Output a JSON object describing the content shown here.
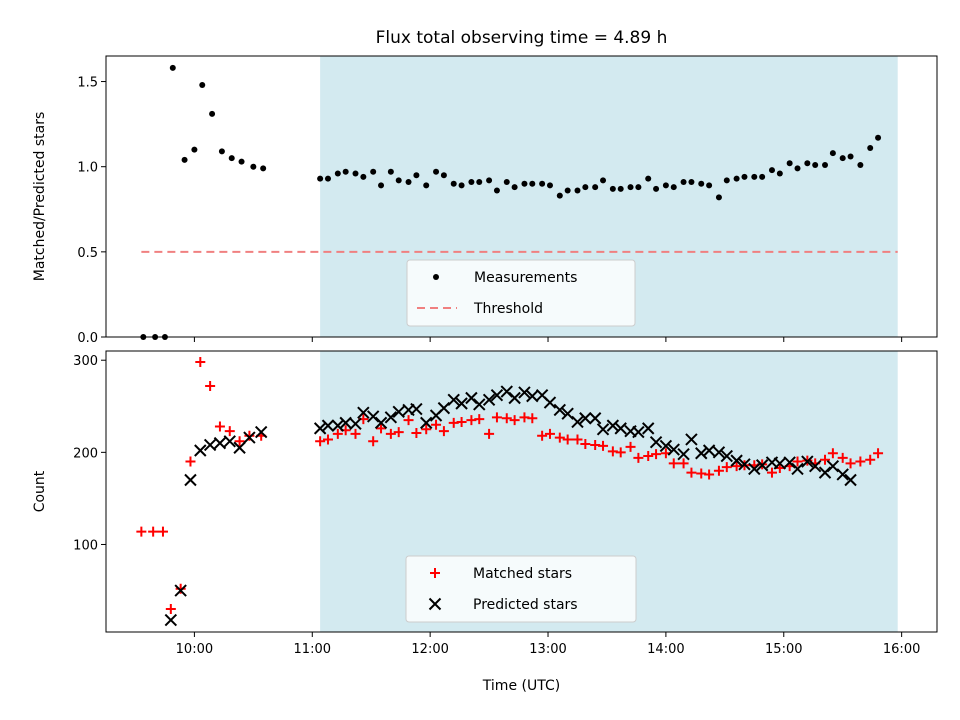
{
  "chart_data": [
    {
      "type": "scatter",
      "title": "Flux total observing time = 4.89 h",
      "xlabel": "",
      "ylabel": "Matched/Predicted stars",
      "ylim": [
        0,
        1.65
      ],
      "yticks": [
        0.0,
        0.5,
        1.0,
        1.5
      ],
      "ytick_labels": [
        "0.0",
        "0.5",
        "1.0",
        "1.5"
      ],
      "xlim": [
        "09:15",
        "16:18"
      ],
      "xtick_labels": [],
      "grid": false,
      "legend_position": "lower center",
      "shaded_interval": {
        "from": "11:04",
        "to": "15:58",
        "color": "#d3eaf0"
      },
      "threshold": {
        "name": "Threshold",
        "value": 0.5,
        "from": "09:33",
        "to": "15:58",
        "color": "#f08080",
        "style": "dashed"
      },
      "series": [
        {
          "name": "Measurements",
          "marker": "dot",
          "color": "#000000",
          "points": [
            [
              "09:34",
              0.0
            ],
            [
              "09:40",
              0.0
            ],
            [
              "09:45",
              0.0
            ],
            [
              "09:49",
              1.58
            ],
            [
              "09:55",
              1.04
            ],
            [
              "10:00",
              1.1
            ],
            [
              "10:04",
              1.48
            ],
            [
              "10:09",
              1.31
            ],
            [
              "10:14",
              1.09
            ],
            [
              "10:19",
              1.05
            ],
            [
              "10:24",
              1.03
            ],
            [
              "10:30",
              1.0
            ],
            [
              "10:35",
              0.99
            ],
            [
              "11:04",
              0.93
            ],
            [
              "11:08",
              0.93
            ],
            [
              "11:13",
              0.96
            ],
            [
              "11:17",
              0.97
            ],
            [
              "11:22",
              0.96
            ],
            [
              "11:26",
              0.94
            ],
            [
              "11:31",
              0.97
            ],
            [
              "11:35",
              0.89
            ],
            [
              "11:40",
              0.97
            ],
            [
              "11:44",
              0.92
            ],
            [
              "11:49",
              0.91
            ],
            [
              "11:53",
              0.95
            ],
            [
              "11:58",
              0.89
            ],
            [
              "12:03",
              0.97
            ],
            [
              "12:07",
              0.95
            ],
            [
              "12:12",
              0.9
            ],
            [
              "12:16",
              0.89
            ],
            [
              "12:21",
              0.91
            ],
            [
              "12:25",
              0.91
            ],
            [
              "12:30",
              0.92
            ],
            [
              "12:34",
              0.86
            ],
            [
              "12:39",
              0.91
            ],
            [
              "12:43",
              0.88
            ],
            [
              "12:48",
              0.9
            ],
            [
              "12:52",
              0.9
            ],
            [
              "12:57",
              0.9
            ],
            [
              "13:01",
              0.89
            ],
            [
              "13:06",
              0.83
            ],
            [
              "13:10",
              0.86
            ],
            [
              "13:15",
              0.86
            ],
            [
              "13:19",
              0.88
            ],
            [
              "13:24",
              0.88
            ],
            [
              "13:28",
              0.92
            ],
            [
              "13:33",
              0.87
            ],
            [
              "13:37",
              0.87
            ],
            [
              "13:42",
              0.88
            ],
            [
              "13:46",
              0.88
            ],
            [
              "13:51",
              0.93
            ],
            [
              "13:55",
              0.87
            ],
            [
              "14:00",
              0.89
            ],
            [
              "14:04",
              0.88
            ],
            [
              "14:09",
              0.91
            ],
            [
              "14:13",
              0.91
            ],
            [
              "14:18",
              0.9
            ],
            [
              "14:22",
              0.89
            ],
            [
              "14:27",
              0.82
            ],
            [
              "14:31",
              0.92
            ],
            [
              "14:36",
              0.93
            ],
            [
              "14:40",
              0.94
            ],
            [
              "14:45",
              0.94
            ],
            [
              "14:49",
              0.94
            ],
            [
              "14:54",
              0.98
            ],
            [
              "14:58",
              0.96
            ],
            [
              "15:03",
              1.02
            ],
            [
              "15:07",
              0.99
            ],
            [
              "15:12",
              1.02
            ],
            [
              "15:16",
              1.01
            ],
            [
              "15:21",
              1.01
            ],
            [
              "15:25",
              1.08
            ],
            [
              "15:30",
              1.05
            ],
            [
              "15:34",
              1.06
            ],
            [
              "15:39",
              1.01
            ],
            [
              "15:44",
              1.11
            ],
            [
              "15:48",
              1.17
            ]
          ]
        }
      ]
    },
    {
      "type": "scatter",
      "title": "",
      "xlabel": "Time (UTC)",
      "ylabel": "Count",
      "ylim": [
        5,
        310
      ],
      "yticks": [
        100,
        200,
        300
      ],
      "ytick_labels": [
        "100",
        "200",
        "300"
      ],
      "xlim": [
        "09:15",
        "16:18"
      ],
      "xticks": [
        "10:00",
        "11:00",
        "12:00",
        "13:00",
        "14:00",
        "15:00",
        "16:00"
      ],
      "xtick_labels": [
        "10:00",
        "11:00",
        "12:00",
        "13:00",
        "14:00",
        "15:00",
        "16:00"
      ],
      "grid": false,
      "legend_position": "lower center",
      "shaded_interval": {
        "from": "11:04",
        "to": "15:58",
        "color": "#d3eaf0"
      },
      "series": [
        {
          "name": "Matched stars",
          "marker": "plus",
          "color": "#ff0000",
          "points": [
            [
              "09:33",
              114
            ],
            [
              "09:39",
              114
            ],
            [
              "09:44",
              114
            ],
            [
              "09:48",
              30
            ],
            [
              "09:53",
              52
            ],
            [
              "09:58",
              190
            ],
            [
              "10:03",
              298
            ],
            [
              "10:08",
              272
            ],
            [
              "10:13",
              228
            ],
            [
              "10:18",
              223
            ],
            [
              "10:23",
              212
            ],
            [
              "10:28",
              218
            ],
            [
              "10:34",
              218
            ],
            [
              "11:04",
              212
            ],
            [
              "11:08",
              214
            ],
            [
              "11:13",
              220
            ],
            [
              "11:17",
              224
            ],
            [
              "11:22",
              220
            ],
            [
              "11:26",
              236
            ],
            [
              "11:31",
              212
            ],
            [
              "11:35",
              226
            ],
            [
              "11:40",
              220
            ],
            [
              "11:44",
              222
            ],
            [
              "11:49",
              235
            ],
            [
              "11:53",
              221
            ],
            [
              "11:58",
              225
            ],
            [
              "12:03",
              230
            ],
            [
              "12:07",
              223
            ],
            [
              "12:12",
              232
            ],
            [
              "12:16",
              233
            ],
            [
              "12:21",
              235
            ],
            [
              "12:25",
              236
            ],
            [
              "12:30",
              220
            ],
            [
              "12:34",
              238
            ],
            [
              "12:39",
              237
            ],
            [
              "12:43",
              235
            ],
            [
              "12:48",
              238
            ],
            [
              "12:52",
              237
            ],
            [
              "12:57",
              218
            ],
            [
              "13:01",
              220
            ],
            [
              "13:06",
              216
            ],
            [
              "13:10",
              214
            ],
            [
              "13:15",
              214
            ],
            [
              "13:19",
              209
            ],
            [
              "13:24",
              208
            ],
            [
              "13:28",
              207
            ],
            [
              "13:33",
              201
            ],
            [
              "13:37",
              200
            ],
            [
              "13:42",
              206
            ],
            [
              "13:46",
              194
            ],
            [
              "13:51",
              196
            ],
            [
              "13:55",
              198
            ],
            [
              "14:00",
              199
            ],
            [
              "14:04",
              188
            ],
            [
              "14:09",
              188
            ],
            [
              "14:13",
              178
            ],
            [
              "14:18",
              177
            ],
            [
              "14:22",
              176
            ],
            [
              "14:27",
              180
            ],
            [
              "14:31",
              184
            ],
            [
              "14:36",
              185
            ],
            [
              "14:40",
              186
            ],
            [
              "14:45",
              186
            ],
            [
              "14:49",
              187
            ],
            [
              "14:54",
              178
            ],
            [
              "14:58",
              183
            ],
            [
              "15:03",
              185
            ],
            [
              "15:07",
              190
            ],
            [
              "15:12",
              191
            ],
            [
              "15:16",
              188
            ],
            [
              "15:21",
              192
            ],
            [
              "15:25",
              199
            ],
            [
              "15:30",
              194
            ],
            [
              "15:34",
              188
            ],
            [
              "15:39",
              190
            ],
            [
              "15:44",
              192
            ],
            [
              "15:48",
              199
            ]
          ]
        },
        {
          "name": "Predicted stars",
          "marker": "x",
          "color": "#000000",
          "points": [
            [
              "09:48",
              18
            ],
            [
              "09:53",
              50
            ],
            [
              "09:58",
              170
            ],
            [
              "10:03",
              202
            ],
            [
              "10:08",
              208
            ],
            [
              "10:13",
              210
            ],
            [
              "10:18",
              212
            ],
            [
              "10:23",
              205
            ],
            [
              "10:28",
              216
            ],
            [
              "10:34",
              222
            ],
            [
              "11:04",
              226
            ],
            [
              "11:08",
              229
            ],
            [
              "11:13",
              229
            ],
            [
              "11:17",
              232
            ],
            [
              "11:22",
              231
            ],
            [
              "11:26",
              243
            ],
            [
              "11:31",
              239
            ],
            [
              "11:35",
              232
            ],
            [
              "11:40",
              238
            ],
            [
              "11:44",
              244
            ],
            [
              "11:49",
              246
            ],
            [
              "11:53",
              247
            ],
            [
              "11:58",
              232
            ],
            [
              "12:03",
              240
            ],
            [
              "12:07",
              248
            ],
            [
              "12:12",
              257
            ],
            [
              "12:16",
              253
            ],
            [
              "12:21",
              259
            ],
            [
              "12:25",
              252
            ],
            [
              "12:30",
              257
            ],
            [
              "12:34",
              262
            ],
            [
              "12:39",
              266
            ],
            [
              "12:43",
              259
            ],
            [
              "12:48",
              265
            ],
            [
              "12:52",
              261
            ],
            [
              "12:57",
              262
            ],
            [
              "13:01",
              254
            ],
            [
              "13:06",
              246
            ],
            [
              "13:10",
              242
            ],
            [
              "13:15",
              233
            ],
            [
              "13:19",
              237
            ],
            [
              "13:24",
              237
            ],
            [
              "13:28",
              225
            ],
            [
              "13:33",
              229
            ],
            [
              "13:37",
              226
            ],
            [
              "13:42",
              223
            ],
            [
              "13:46",
              222
            ],
            [
              "13:51",
              226
            ],
            [
              "13:55",
              211
            ],
            [
              "14:00",
              207
            ],
            [
              "14:04",
              203
            ],
            [
              "14:09",
              198
            ],
            [
              "14:13",
              214
            ],
            [
              "14:18",
              199
            ],
            [
              "14:22",
              202
            ],
            [
              "14:27",
              200
            ],
            [
              "14:31",
              196
            ],
            [
              "14:36",
              191
            ],
            [
              "14:40",
              187
            ],
            [
              "14:45",
              182
            ],
            [
              "14:49",
              186
            ],
            [
              "14:54",
              189
            ],
            [
              "14:58",
              188
            ],
            [
              "15:03",
              189
            ],
            [
              "15:07",
              182
            ],
            [
              "15:12",
              190
            ],
            [
              "15:16",
              185
            ],
            [
              "15:21",
              178
            ],
            [
              "15:25",
              185
            ],
            [
              "15:30",
              176
            ],
            [
              "15:34",
              170
            ]
          ]
        }
      ]
    }
  ]
}
